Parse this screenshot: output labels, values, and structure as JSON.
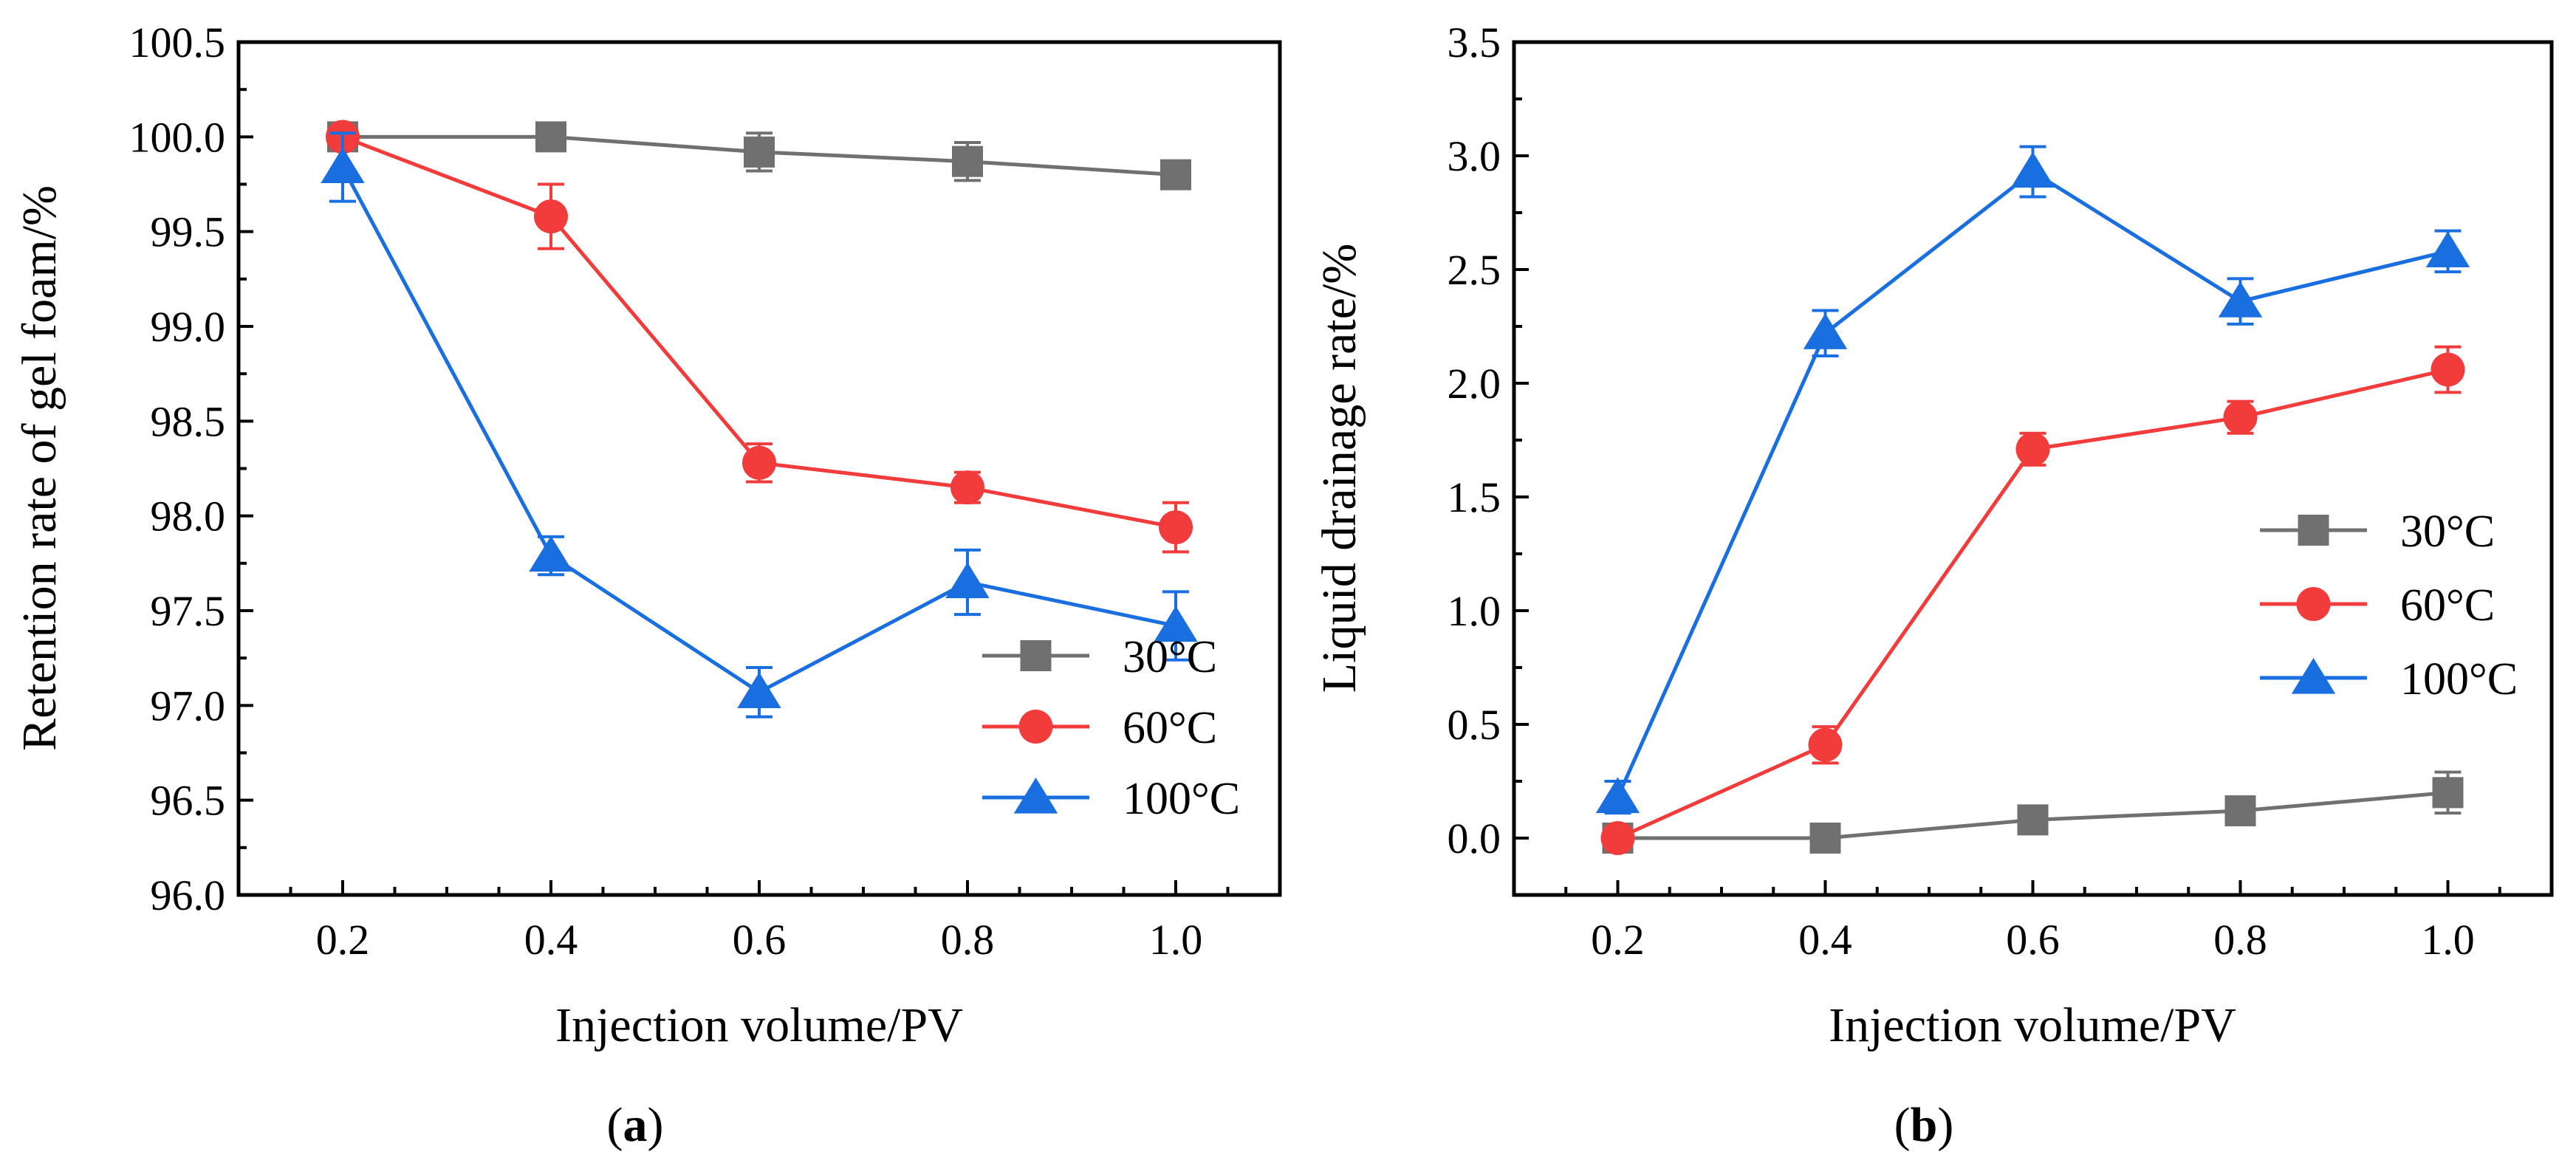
{
  "chart_data": [
    {
      "type": "line",
      "panel_label": {
        "open": "(",
        "letter": "a",
        "close": ")"
      },
      "xlabel": "Injection volume/PV",
      "ylabel": "Retention rate of gel foam/%",
      "x": [
        0.2,
        0.4,
        0.6,
        0.8,
        1.0
      ],
      "xlim": [
        0.1,
        1.1
      ],
      "ylim": [
        96.0,
        100.5
      ],
      "xticks": [
        "0.2",
        "0.4",
        "0.6",
        "0.8",
        "1.0"
      ],
      "yticks": [
        "96.0",
        "96.5",
        "97.0",
        "97.5",
        "98.0",
        "98.5",
        "99.0",
        "99.5",
        "100.0",
        "100.5"
      ],
      "legend_position": "bottom-right",
      "series": [
        {
          "name": "30°C",
          "color": "#707070",
          "marker": "square",
          "values": [
            100.0,
            100.0,
            99.92,
            99.87,
            99.8
          ],
          "errors": [
            0.0,
            0.0,
            0.1,
            0.1,
            0.07
          ]
        },
        {
          "name": "60°C",
          "color": "#f23c3c",
          "marker": "circle",
          "values": [
            100.0,
            99.58,
            98.28,
            98.15,
            97.94
          ],
          "errors": [
            0.0,
            0.17,
            0.1,
            0.08,
            0.13
          ]
        },
        {
          "name": "100°C",
          "color": "#1a6fe0",
          "marker": "triangle",
          "values": [
            99.84,
            97.79,
            97.07,
            97.65,
            97.42
          ],
          "errors": [
            0.18,
            0.1,
            0.13,
            0.17,
            0.18
          ]
        }
      ]
    },
    {
      "type": "line",
      "panel_label": {
        "open": "(",
        "letter": "b",
        "close": ")"
      },
      "xlabel": "Injection volume/PV",
      "ylabel": "Liquid drainage rate/%",
      "x": [
        0.2,
        0.4,
        0.6,
        0.8,
        1.0
      ],
      "xlim": [
        0.1,
        1.1
      ],
      "ylim": [
        -0.25,
        3.5
      ],
      "xticks": [
        "0.2",
        "0.4",
        "0.6",
        "0.8",
        "1.0"
      ],
      "yticks": [
        "0.0",
        "0.5",
        "1.0",
        "1.5",
        "2.0",
        "2.5",
        "3.0",
        "3.5"
      ],
      "legend_position": "center-right",
      "series": [
        {
          "name": "30°C",
          "color": "#707070",
          "marker": "square",
          "values": [
            0.0,
            0.0,
            0.08,
            0.12,
            0.2
          ],
          "errors": [
            0.0,
            0.0,
            0.05,
            0.04,
            0.09
          ]
        },
        {
          "name": "60°C",
          "color": "#f23c3c",
          "marker": "circle",
          "values": [
            0.0,
            0.41,
            1.71,
            1.85,
            2.06
          ],
          "errors": [
            0.0,
            0.08,
            0.07,
            0.07,
            0.1
          ]
        },
        {
          "name": "100°C",
          "color": "#1a6fe0",
          "marker": "triangle",
          "values": [
            0.18,
            2.22,
            2.93,
            2.36,
            2.58
          ],
          "errors": [
            0.07,
            0.1,
            0.11,
            0.1,
            0.09
          ]
        }
      ]
    }
  ]
}
